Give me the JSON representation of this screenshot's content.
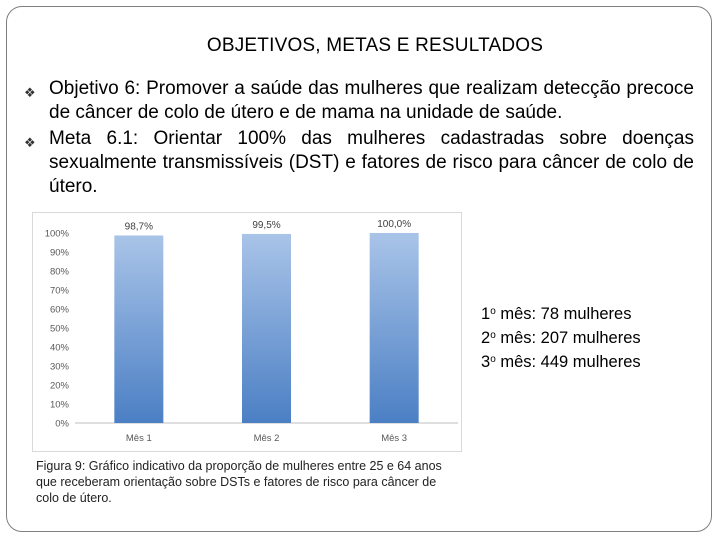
{
  "slide": {
    "title": "OBJETIVOS, METAS E RESULTADOS",
    "bullets": [
      {
        "lead": "Objetivo 6:",
        "text": "Promover a saúde das mulheres que realizam detecção precoce de câncer de colo de útero e de mama na unidade de saúde."
      },
      {
        "lead": "Meta 6.1:",
        "text": "Orientar 100% das mulheres cadastradas sobre doenças sexualmente transmissíveis (DST) e fatores de risco para câncer de colo de útero."
      }
    ],
    "monthly_counts": [
      {
        "ordinal": "1",
        "suffix": "o",
        "label": "mês: 78 mulheres"
      },
      {
        "ordinal": "2",
        "suffix": "o",
        "label": "mês: 207 mulheres"
      },
      {
        "ordinal": "3",
        "suffix": "o",
        "label": "mês: 449 mulheres"
      }
    ],
    "caption": "Figura 9: Gráfico indicativo da proporção de mulheres entre 25 e 64 anos que receberam orientação sobre DSTs e fatores de risco para câncer de colo de útero.",
    "bullet_icon": "decorative-bullet-icon"
  },
  "chart_data": {
    "type": "bar",
    "categories": [
      "Mês 1",
      "Mês 2",
      "Mês 3"
    ],
    "values": [
      98.7,
      99.5,
      100.0
    ],
    "data_labels": [
      "98,7%",
      "99,5%",
      "100,0%"
    ],
    "ylim": [
      0,
      100
    ],
    "yticks": [
      0,
      10,
      20,
      30,
      40,
      50,
      60,
      70,
      80,
      90,
      100
    ],
    "ytick_labels": [
      "0%",
      "10%",
      "20%",
      "30%",
      "40%",
      "50%",
      "60%",
      "70%",
      "80%",
      "90%",
      "100%"
    ],
    "title": "",
    "xlabel": "",
    "ylabel": "",
    "grid": false,
    "colors": {
      "bar_top": "#a9c4e8",
      "bar_bottom": "#4b7fc4",
      "tick_text": "#595959",
      "axis": "#bfbfbf"
    }
  }
}
